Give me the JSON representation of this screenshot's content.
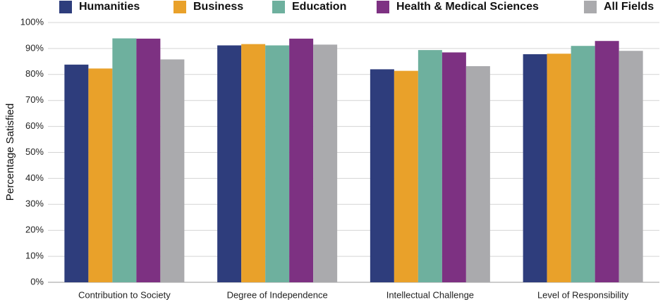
{
  "chart_data": {
    "type": "bar",
    "title": "",
    "xlabel": "",
    "ylabel": "Percentage Satisfied",
    "ylim": [
      0,
      100
    ],
    "yticks": [
      "0%",
      "10%",
      "20%",
      "30%",
      "40%",
      "50%",
      "60%",
      "70%",
      "80%",
      "90%",
      "100%"
    ],
    "grid": true,
    "legend_position": "top",
    "categories": [
      "Contribution to Society",
      "Degree of Independence",
      "Intellectual Challenge",
      "Level of Responsibility"
    ],
    "series": [
      {
        "name": "Humanities",
        "color": "#2e3d7c",
        "values": [
          83.8,
          91.2,
          82.0,
          87.8
        ]
      },
      {
        "name": "Business",
        "color": "#e9a12a",
        "values": [
          82.3,
          91.7,
          81.4,
          88.0
        ]
      },
      {
        "name": "Education",
        "color": "#6eb09e",
        "values": [
          93.9,
          91.2,
          89.4,
          91.0
        ]
      },
      {
        "name": "Health & Medical Sciences",
        "color": "#7d3182",
        "values": [
          93.8,
          93.8,
          88.5,
          92.9
        ]
      },
      {
        "name": "All Fields",
        "color": "#aaaaad",
        "values": [
          85.8,
          91.5,
          83.2,
          89.1
        ]
      }
    ]
  }
}
